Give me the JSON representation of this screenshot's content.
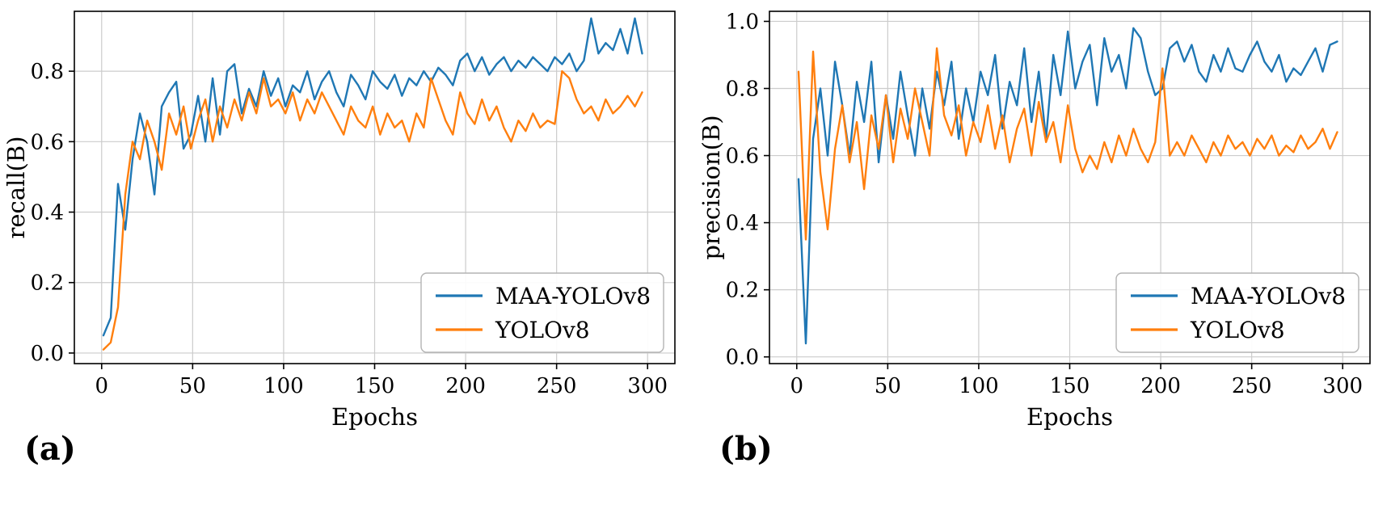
{
  "figures": [
    {
      "caption": "(a)"
    },
    {
      "caption": "(b)"
    }
  ],
  "style": {
    "grid_color": "#cccccc",
    "axis_color": "#000000",
    "legend_border_color": "#b3b3b3",
    "legend_bg_color": "#ffffff"
  },
  "chart_data": [
    {
      "type": "line",
      "title": "",
      "xlabel": "Epochs",
      "ylabel": "recall(B)",
      "xlim": [
        -15,
        315
      ],
      "ylim": [
        -0.03,
        0.97
      ],
      "xticks": [
        0,
        50,
        100,
        150,
        200,
        250,
        300
      ],
      "yticks": [
        0.0,
        0.2,
        0.4,
        0.6,
        0.8
      ],
      "grid": true,
      "legend_position": "lower right",
      "x_start": 1,
      "x_step": 4,
      "series": [
        {
          "name": "MAA-YOLOv8",
          "color": "#1f77b4",
          "values": [
            0.05,
            0.1,
            0.48,
            0.35,
            0.55,
            0.68,
            0.6,
            0.45,
            0.7,
            0.74,
            0.77,
            0.58,
            0.62,
            0.73,
            0.6,
            0.78,
            0.62,
            0.8,
            0.82,
            0.68,
            0.75,
            0.7,
            0.8,
            0.73,
            0.78,
            0.7,
            0.76,
            0.74,
            0.8,
            0.72,
            0.77,
            0.8,
            0.74,
            0.7,
            0.79,
            0.76,
            0.72,
            0.8,
            0.77,
            0.75,
            0.79,
            0.73,
            0.78,
            0.76,
            0.8,
            0.77,
            0.81,
            0.79,
            0.76,
            0.83,
            0.85,
            0.8,
            0.84,
            0.79,
            0.82,
            0.84,
            0.8,
            0.83,
            0.81,
            0.84,
            0.82,
            0.8,
            0.84,
            0.82,
            0.85,
            0.8,
            0.83,
            0.95,
            0.85,
            0.88,
            0.86,
            0.92,
            0.85,
            0.95,
            0.85
          ]
        },
        {
          "name": "YOLOv8",
          "color": "#ff7f0e",
          "values": [
            0.01,
            0.03,
            0.13,
            0.45,
            0.6,
            0.55,
            0.66,
            0.6,
            0.52,
            0.68,
            0.62,
            0.7,
            0.58,
            0.66,
            0.72,
            0.6,
            0.7,
            0.64,
            0.72,
            0.66,
            0.74,
            0.68,
            0.78,
            0.7,
            0.72,
            0.68,
            0.74,
            0.66,
            0.72,
            0.68,
            0.74,
            0.7,
            0.66,
            0.62,
            0.7,
            0.66,
            0.64,
            0.7,
            0.62,
            0.68,
            0.64,
            0.66,
            0.6,
            0.68,
            0.64,
            0.78,
            0.72,
            0.66,
            0.62,
            0.74,
            0.68,
            0.65,
            0.72,
            0.66,
            0.7,
            0.64,
            0.6,
            0.66,
            0.63,
            0.68,
            0.64,
            0.66,
            0.65,
            0.8,
            0.78,
            0.72,
            0.68,
            0.7,
            0.66,
            0.72,
            0.68,
            0.7,
            0.73,
            0.7,
            0.74
          ]
        }
      ]
    },
    {
      "type": "line",
      "title": "",
      "xlabel": "Epochs",
      "ylabel": "precision(B)",
      "xlim": [
        -15,
        315
      ],
      "ylim": [
        -0.02,
        1.03
      ],
      "xticks": [
        0,
        50,
        100,
        150,
        200,
        250,
        300
      ],
      "yticks": [
        0.0,
        0.2,
        0.4,
        0.6,
        0.8,
        1.0
      ],
      "grid": true,
      "legend_position": "lower right",
      "x_start": 1,
      "x_step": 4,
      "series": [
        {
          "name": "MAA-YOLOv8",
          "color": "#1f77b4",
          "values": [
            0.53,
            0.04,
            0.65,
            0.8,
            0.6,
            0.88,
            0.75,
            0.6,
            0.82,
            0.7,
            0.88,
            0.58,
            0.78,
            0.65,
            0.85,
            0.72,
            0.6,
            0.8,
            0.68,
            0.85,
            0.75,
            0.88,
            0.65,
            0.8,
            0.7,
            0.85,
            0.78,
            0.9,
            0.68,
            0.82,
            0.75,
            0.92,
            0.7,
            0.85,
            0.65,
            0.9,
            0.78,
            0.97,
            0.8,
            0.88,
            0.93,
            0.75,
            0.95,
            0.85,
            0.9,
            0.8,
            0.98,
            0.95,
            0.85,
            0.78,
            0.8,
            0.92,
            0.94,
            0.88,
            0.93,
            0.85,
            0.82,
            0.9,
            0.85,
            0.92,
            0.86,
            0.85,
            0.9,
            0.94,
            0.88,
            0.85,
            0.9,
            0.82,
            0.86,
            0.84,
            0.88,
            0.92,
            0.85,
            0.93,
            0.94
          ]
        },
        {
          "name": "YOLOv8",
          "color": "#ff7f0e",
          "values": [
            0.85,
            0.35,
            0.91,
            0.55,
            0.38,
            0.62,
            0.75,
            0.58,
            0.7,
            0.5,
            0.72,
            0.62,
            0.78,
            0.58,
            0.74,
            0.65,
            0.8,
            0.7,
            0.6,
            0.92,
            0.72,
            0.66,
            0.75,
            0.6,
            0.7,
            0.64,
            0.75,
            0.62,
            0.72,
            0.58,
            0.68,
            0.74,
            0.6,
            0.76,
            0.64,
            0.7,
            0.58,
            0.75,
            0.62,
            0.55,
            0.6,
            0.56,
            0.64,
            0.58,
            0.66,
            0.6,
            0.68,
            0.62,
            0.58,
            0.64,
            0.86,
            0.6,
            0.64,
            0.6,
            0.66,
            0.62,
            0.58,
            0.64,
            0.6,
            0.66,
            0.62,
            0.64,
            0.6,
            0.65,
            0.62,
            0.66,
            0.6,
            0.63,
            0.61,
            0.66,
            0.62,
            0.64,
            0.68,
            0.62,
            0.67
          ]
        }
      ]
    }
  ]
}
